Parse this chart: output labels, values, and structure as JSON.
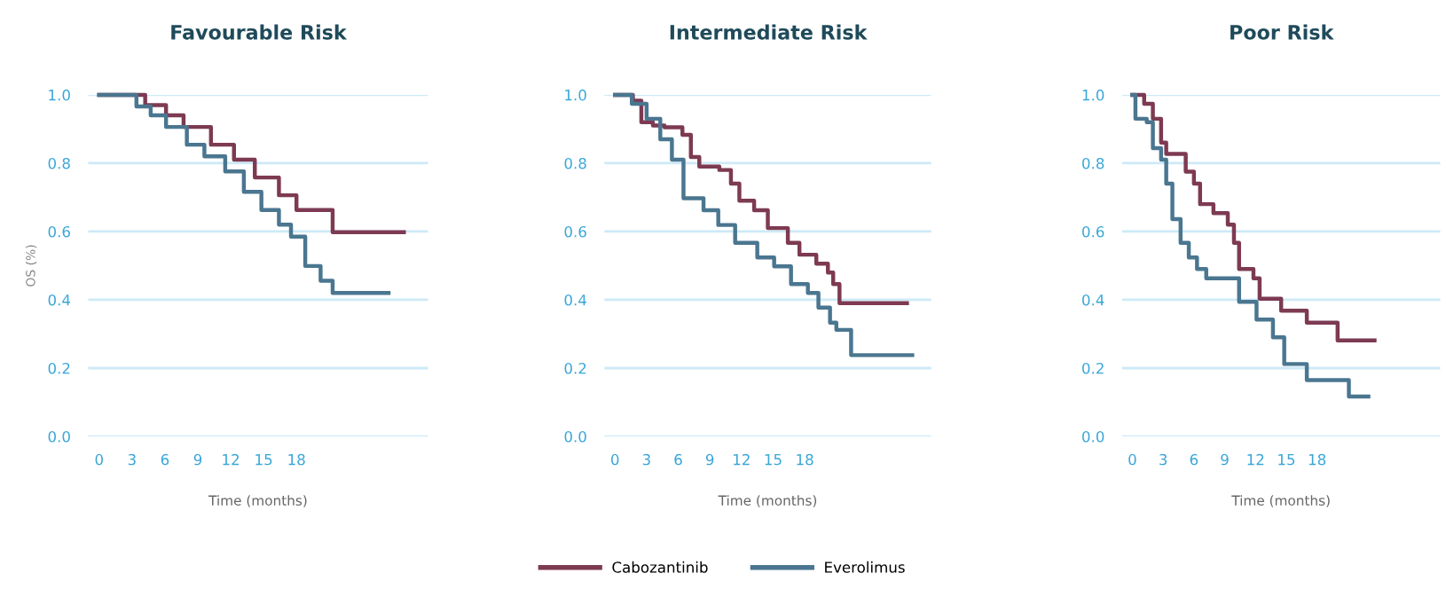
{
  "chart_data": [
    {
      "type": "step",
      "title": "Favourable Risk",
      "xlabel": "Time (months)",
      "ylabel": "OS (%)",
      "xlim": [
        -1,
        30
      ],
      "xticks": [
        0,
        3,
        6,
        9,
        12,
        15,
        18
      ],
      "ylim": [
        0,
        1
      ],
      "yticks": [
        {
          "value": 0,
          "label": "0.0"
        },
        {
          "value": 0.2,
          "label": "0.2"
        },
        {
          "value": 0.4,
          "label": "0.4"
        },
        {
          "value": 0.6,
          "label": "0.6"
        },
        {
          "value": 0.8,
          "label": "0.8"
        },
        {
          "value": 1,
          "label": "1.0"
        }
      ],
      "grid": "y",
      "series": [
        {
          "color": "#7d3a52",
          "x": [
            0,
            1.5,
            4.2,
            6.1,
            7.7,
            10.2,
            12.3,
            14.2,
            16.4,
            18,
            20.2,
            21.3,
            27.8
          ],
          "values": [
            1.0,
            1.0,
            0.97,
            0.94,
            0.906,
            0.854,
            0.81,
            0.758,
            0.706,
            0.663,
            0.663,
            0.598,
            0.598
          ]
        },
        {
          "color": "#4a7690",
          "x": [
            0,
            1.2,
            3.4,
            4.7,
            6.1,
            8,
            9.6,
            11.5,
            13.2,
            14.8,
            16.4,
            17.5,
            18.8,
            20.2,
            21.3,
            26.4
          ],
          "values": [
            1.0,
            1.0,
            0.966,
            0.94,
            0.906,
            0.854,
            0.82,
            0.776,
            0.716,
            0.663,
            0.62,
            0.585,
            0.499,
            0.456,
            0.42,
            0.42
          ]
        }
      ]
    },
    {
      "type": "step",
      "title": "Intermediate Risk",
      "xlabel": "Time (months)",
      "legend": "bottom",
      "xlim": [
        -1,
        30
      ],
      "xticks": [
        0,
        3,
        6,
        9,
        12,
        15,
        18
      ],
      "ylim": [
        0,
        1
      ],
      "yticks": [
        {
          "value": 0,
          "label": "0.0"
        },
        {
          "value": 0.2,
          "label": "0.2"
        },
        {
          "value": 0.4,
          "label": "0.4"
        },
        {
          "value": 0.6,
          "label": "0.6"
        },
        {
          "value": 0.8,
          "label": "0.8"
        },
        {
          "value": 1,
          "label": "1.0"
        }
      ],
      "grid": "y",
      "series": [
        {
          "name": "Cabozantinib",
          "color": "#7d3a52",
          "x": [
            0,
            1.7,
            2.5,
            3.6,
            4.7,
            6.4,
            7.2,
            8,
            9.9,
            11,
            11.8,
            13.2,
            14.5,
            16.4,
            17.5,
            19.1,
            20.2,
            20.7,
            21.3,
            27.7
          ],
          "values": [
            1.0,
            0.983,
            0.92,
            0.91,
            0.905,
            0.883,
            0.818,
            0.79,
            0.78,
            0.74,
            0.69,
            0.662,
            0.61,
            0.567,
            0.532,
            0.506,
            0.48,
            0.446,
            0.39,
            0.39
          ]
        },
        {
          "name": "Everolimus",
          "color": "#4a7690",
          "x": [
            0,
            1.6,
            3,
            4.3,
            5.4,
            6.5,
            8.4,
            9.8,
            11.4,
            13.5,
            15.1,
            16.7,
            18.3,
            19.3,
            20.4,
            21,
            22.4,
            28.2
          ],
          "values": [
            1.0,
            0.974,
            0.93,
            0.87,
            0.81,
            0.697,
            0.662,
            0.619,
            0.567,
            0.524,
            0.498,
            0.446,
            0.42,
            0.377,
            0.333,
            0.312,
            0.238,
            0.238
          ]
        }
      ]
    },
    {
      "type": "step",
      "title": "Poor Risk",
      "xlabel": "Time (months)",
      "xlim": [
        -1,
        30
      ],
      "xticks": [
        0,
        3,
        6,
        9,
        12,
        15,
        18
      ],
      "ylim": [
        0,
        1
      ],
      "yticks": [
        {
          "value": 0,
          "label": "0.0"
        },
        {
          "value": 0.2,
          "label": "0.2"
        },
        {
          "value": 0.4,
          "label": "0.4"
        },
        {
          "value": 0.6,
          "label": "0.6"
        },
        {
          "value": 0.8,
          "label": "0.8"
        },
        {
          "value": 1,
          "label": "1.0"
        }
      ],
      "grid": "y",
      "series": [
        {
          "color": "#7d3a52",
          "x": [
            0,
            1.15,
            2,
            2.8,
            3.3,
            5.2,
            6,
            6.6,
            7.9,
            9.3,
            9.9,
            10.4,
            11.8,
            12.4,
            14.5,
            17,
            20,
            23.6
          ],
          "values": [
            1.0,
            0.974,
            0.93,
            0.86,
            0.827,
            0.775,
            0.74,
            0.68,
            0.654,
            0.62,
            0.567,
            0.49,
            0.463,
            0.403,
            0.368,
            0.333,
            0.281,
            0.281
          ]
        },
        {
          "color": "#4a7690",
          "x": [
            0,
            0.3,
            1.4,
            2,
            2.8,
            3.3,
            3.9,
            4.7,
            5.5,
            6.3,
            7.2,
            9.9,
            10.4,
            12.1,
            13.7,
            14.8,
            17,
            21.1,
            23
          ],
          "values": [
            1.0,
            0.93,
            0.92,
            0.844,
            0.81,
            0.74,
            0.636,
            0.567,
            0.524,
            0.49,
            0.463,
            0.463,
            0.394,
            0.342,
            0.29,
            0.212,
            0.165,
            0.117,
            0.117
          ]
        }
      ]
    }
  ]
}
